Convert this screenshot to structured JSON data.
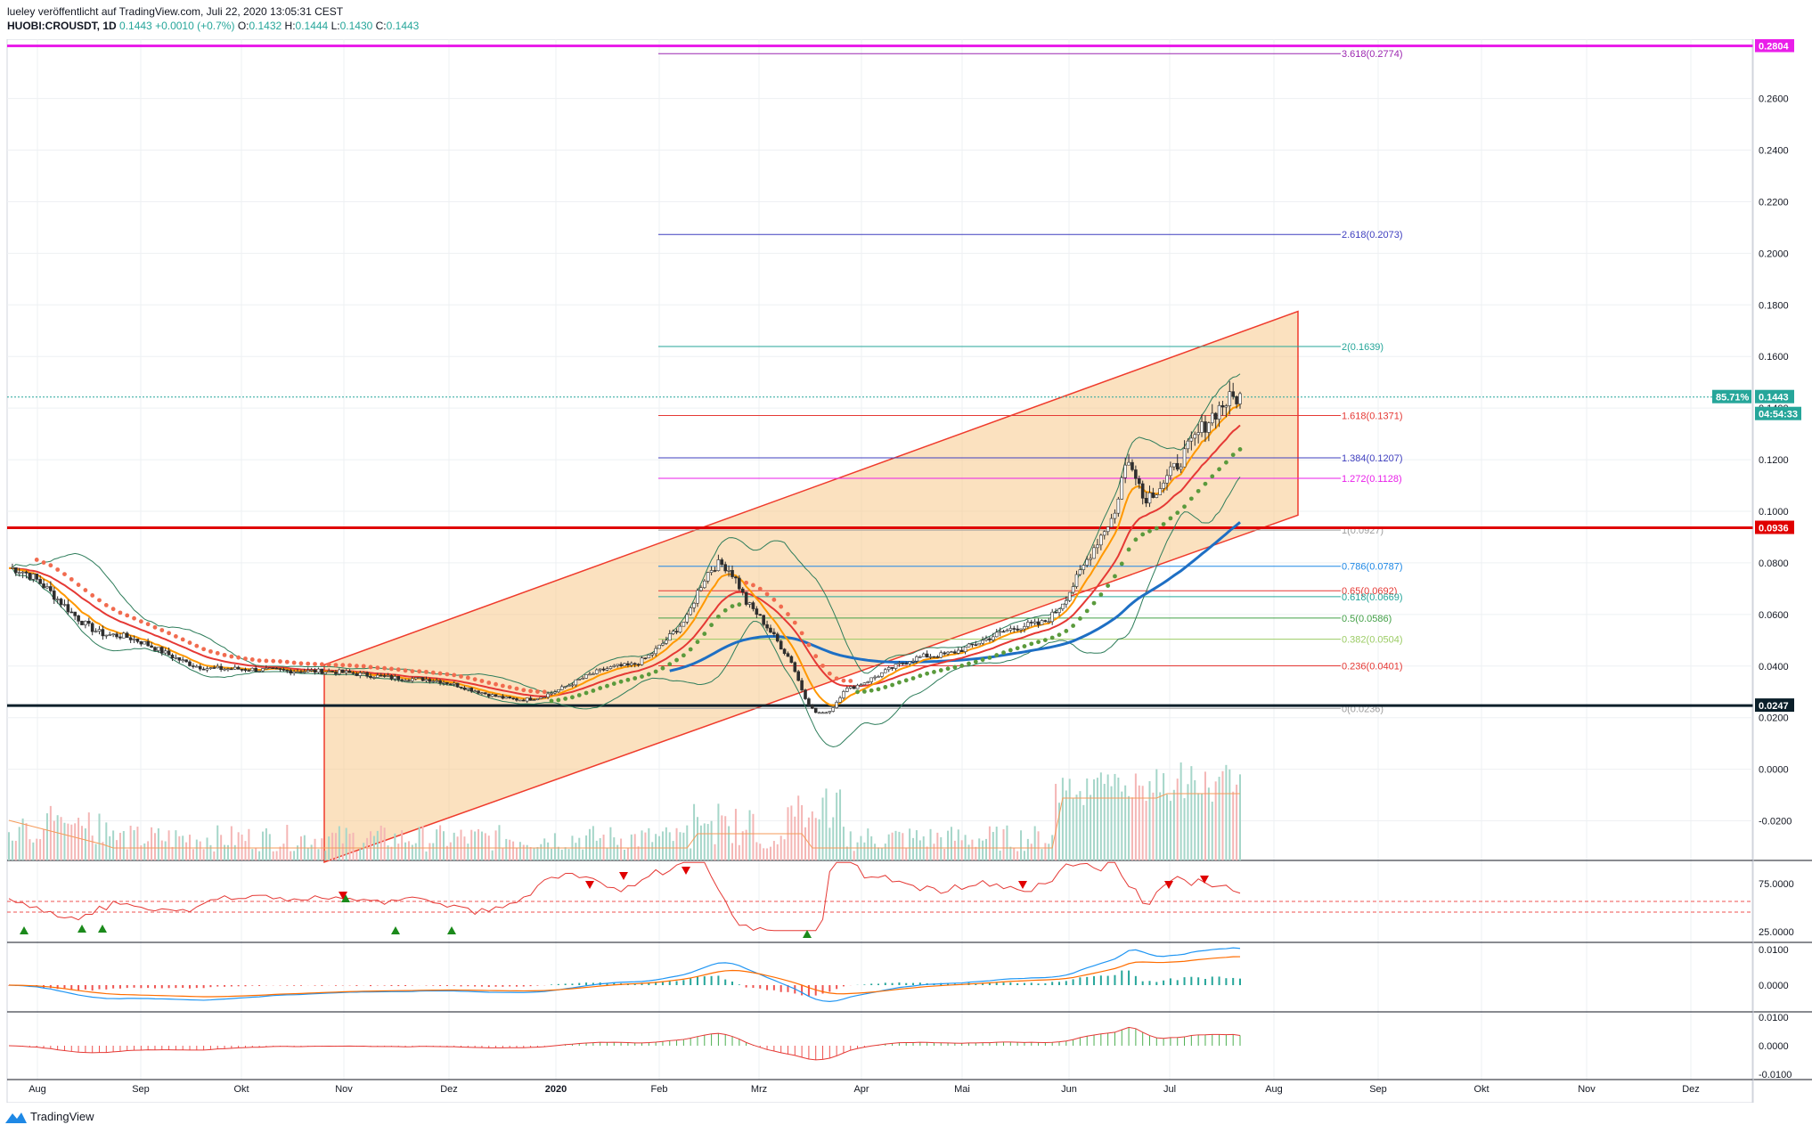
{
  "header": {
    "publisher_line": "lueley veröffentlicht auf TradingView.com, Juli 22, 2020 13:05:31 CEST",
    "symbol": "HUOBI:CROUSDT, 1D",
    "last": "0.1443",
    "change": "+0.0010 (+0.7%)",
    "o_label": "O:",
    "o": "0.1432",
    "h_label": "H:",
    "h": "0.1444",
    "l_label": "L:",
    "l": "0.1430",
    "c_label": "C:",
    "c": "0.1443"
  },
  "footer": {
    "brand": "TradingView",
    "logo_icon": "tradingview-logo-icon"
  },
  "colors": {
    "up": "#26a69a",
    "down": "#ef5350",
    "channel_fill": "#f7c98b",
    "channel_line": "#ef3b2c",
    "magenta": "#e91ee9",
    "support_red": "#e00000",
    "support_black": "#0b1f2a",
    "ema_red": "#e53935",
    "ema_orange": "#ff9800",
    "ma_blue": "#1e6fc4",
    "bb": "#2e7d5b"
  },
  "chart_data": {
    "type": "candlestick",
    "symbol": "HUOBI:CROUSDT",
    "timeframe": "1D",
    "x_labels": [
      "Aug",
      "Sep",
      "Okt",
      "Nov",
      "Dez",
      "2020",
      "Feb",
      "Mrz",
      "Apr",
      "Mai",
      "Jun",
      "Jul",
      "Aug",
      "Sep",
      "Okt",
      "Nov",
      "Dez"
    ],
    "y_ticks": [
      "0.2600",
      "0.2400",
      "0.2200",
      "0.2000",
      "0.1800",
      "0.1600",
      "0.1400",
      "0.1200",
      "0.1000",
      "0.0800",
      "0.0600",
      "0.0400",
      "0.0200",
      "0.0000",
      "-0.0200"
    ],
    "y_range": [
      -0.035,
      0.283
    ],
    "price_series": {
      "months": [
        "Jul",
        "Aug",
        "Sep",
        "Okt",
        "Nov",
        "Dez",
        "Jan",
        "Feb",
        "Mrz",
        "Apr",
        "Mai",
        "Jun",
        "Jul"
      ],
      "approx_close": [
        0.078,
        0.052,
        0.039,
        0.038,
        0.035,
        0.027,
        0.04,
        0.068,
        0.03,
        0.044,
        0.056,
        0.105,
        0.1443
      ]
    },
    "fibonacci_levels": [
      {
        "ratio": "3.618",
        "value": "0.2774",
        "label": "3.618(0.2774)",
        "color": "#9c27b0"
      },
      {
        "ratio": "2.618",
        "value": "0.2073",
        "label": "2.618(0.2073)",
        "color": "#3f3fbf"
      },
      {
        "ratio": "2",
        "value": "0.1639",
        "label": "2(0.1639)",
        "color": "#26a69a"
      },
      {
        "ratio": "1.618",
        "value": "0.1371",
        "label": "1.618(0.1371)",
        "color": "#e53935"
      },
      {
        "ratio": "1.384",
        "value": "0.1207",
        "label": "1.384(0.1207)",
        "color": "#3f3fbf"
      },
      {
        "ratio": "1.272",
        "value": "0.1128",
        "label": "1.272(0.1128)",
        "color": "#e91ee9"
      },
      {
        "ratio": "1",
        "value": "0.0927",
        "label": "1(0.0927)",
        "color": "#9e9e9e"
      },
      {
        "ratio": "0.786",
        "value": "0.0787",
        "label": "0.786(0.0787)",
        "color": "#1e88e5"
      },
      {
        "ratio": "0.65",
        "value": "0.0692",
        "label": "0.65(0.0692)",
        "color": "#e53935"
      },
      {
        "ratio": "0.618",
        "value": "0.0669",
        "label": "0.618(0.0669)",
        "color": "#26a69a"
      },
      {
        "ratio": "0.5",
        "value": "0.0586",
        "label": "0.5(0.0586)",
        "color": "#43a047"
      },
      {
        "ratio": "0.382",
        "value": "0.0504",
        "label": "0.382(0.0504)",
        "color": "#9ccc65"
      },
      {
        "ratio": "0.236",
        "value": "0.0401",
        "label": "0.236(0.0401)",
        "color": "#e53935"
      },
      {
        "ratio": "0",
        "value": "0.0236",
        "label": "0(0.0236)",
        "color": "#9e9e9e"
      }
    ],
    "horizontal_levels": [
      {
        "value": "0.2804",
        "color": "#e91ee9"
      },
      {
        "value": "0.0936",
        "color": "#e00000"
      },
      {
        "value": "0.0247",
        "color": "#0b1f2a"
      }
    ],
    "current_price_badge": {
      "value": "0.1443",
      "percent": "85.71%",
      "countdown": "04:54:33"
    },
    "rsi_ticks": [
      "75.0000",
      "25.0000"
    ],
    "macd_ticks": [
      "0.0100",
      "0.0000"
    ],
    "osc_ticks": [
      "0.0100",
      "0.0000",
      "-0.0100"
    ]
  }
}
